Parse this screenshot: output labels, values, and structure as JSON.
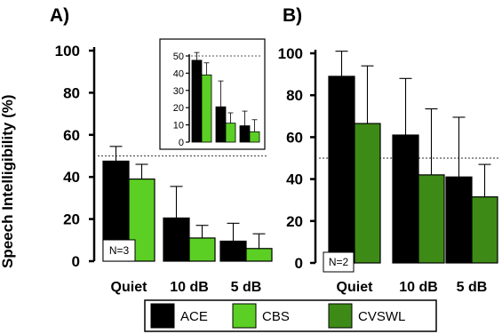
{
  "chart_data": [
    {
      "panel": "A)",
      "type": "bar",
      "ylabel": "Speech Intelligibility (%)",
      "ylim": [
        0,
        100
      ],
      "yticks": [
        0,
        20,
        40,
        60,
        80,
        100
      ],
      "categories": [
        "Quiet",
        "10 dB",
        "5 dB"
      ],
      "series": [
        {
          "name": "ACE",
          "color": "#000000",
          "values": [
            47.5,
            20.5,
            9.5
          ],
          "errors": [
            7,
            15,
            8.5
          ]
        },
        {
          "name": "CBS",
          "color": "#5ccf24",
          "values": [
            39,
            11,
            6
          ],
          "errors": [
            7,
            6,
            7
          ]
        }
      ],
      "reference_line": 50,
      "annotation": "N=3",
      "inset": {
        "ylim": [
          0,
          50
        ],
        "yticks": [
          0,
          10,
          20,
          30,
          40,
          50
        ],
        "reference_line": 50
      }
    },
    {
      "panel": "B)",
      "type": "bar",
      "ylabel": "",
      "ylim": [
        0,
        100
      ],
      "yticks": [
        0,
        20,
        40,
        60,
        80,
        100
      ],
      "categories": [
        "Quiet",
        "10 dB",
        "5 dB"
      ],
      "series": [
        {
          "name": "ACE",
          "color": "#000000",
          "values": [
            89,
            61,
            41
          ],
          "errors": [
            12,
            27,
            28.5
          ]
        },
        {
          "name": "CVSWL",
          "color": "#3d8b16",
          "values": [
            66.5,
            42,
            31.5
          ],
          "errors": [
            27.5,
            31.5,
            15.5
          ]
        }
      ],
      "reference_line": 50,
      "annotation": "N=2"
    }
  ],
  "legend": [
    {
      "label": "ACE",
      "color": "#000000"
    },
    {
      "label": "CBS",
      "color": "#5ccf24"
    },
    {
      "label": "CVSWL",
      "color": "#3d8b16"
    }
  ]
}
